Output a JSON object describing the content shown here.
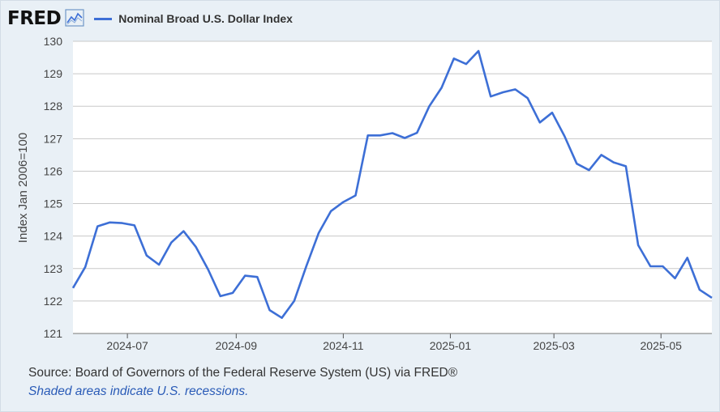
{
  "header": {
    "logo": "FRED",
    "legend_label": "Nominal Broad U.S. Dollar Index",
    "icon": "chart-line-icon"
  },
  "footer": {
    "source": "Source: Board of Governors of the Federal Reserve System (US) via FRED®",
    "note": "Shaded areas indicate U.S. recessions."
  },
  "colors": {
    "line": "#3d6fd6",
    "plot_bg": "#ffffff",
    "grid": "#c8c8c8",
    "page_bg": "#e9f0f6",
    "note_text": "#2a5bb7"
  },
  "chart_data": {
    "type": "line",
    "title": "",
    "xlabel": "",
    "ylabel": "Index Jan 2006=100",
    "ylim": [
      121,
      130
    ],
    "yticks": [
      121,
      122,
      123,
      124,
      125,
      126,
      127,
      128,
      129,
      130
    ],
    "xlim": [
      "2024-05-31",
      "2025-05-30"
    ],
    "xticks": [
      "2024-07",
      "2024-09",
      "2024-11",
      "2025-01",
      "2025-03",
      "2025-05"
    ],
    "grid": true,
    "legend": "top-left",
    "series": [
      {
        "name": "Nominal Broad U.S. Dollar Index",
        "x": [
          "2024-05-31",
          "2024-06-07",
          "2024-06-14",
          "2024-06-21",
          "2024-06-28",
          "2024-07-05",
          "2024-07-12",
          "2024-07-19",
          "2024-07-26",
          "2024-08-02",
          "2024-08-09",
          "2024-08-16",
          "2024-08-23",
          "2024-08-30",
          "2024-09-06",
          "2024-09-13",
          "2024-09-20",
          "2024-09-27",
          "2024-10-04",
          "2024-10-11",
          "2024-10-18",
          "2024-10-25",
          "2024-11-01",
          "2024-11-08",
          "2024-11-15",
          "2024-11-22",
          "2024-11-29",
          "2024-12-06",
          "2024-12-13",
          "2024-12-20",
          "2024-12-27",
          "2025-01-03",
          "2025-01-10",
          "2025-01-17",
          "2025-01-24",
          "2025-01-31",
          "2025-02-07",
          "2025-02-14",
          "2025-02-21",
          "2025-02-28",
          "2025-03-07",
          "2025-03-14",
          "2025-03-21",
          "2025-03-28",
          "2025-04-04",
          "2025-04-11",
          "2025-04-18",
          "2025-04-25",
          "2025-05-02",
          "2025-05-09",
          "2025-05-16",
          "2025-05-23",
          "2025-05-30"
        ],
        "y": [
          122.4,
          123.05,
          124.3,
          124.42,
          124.4,
          124.33,
          123.4,
          123.12,
          123.8,
          124.15,
          123.67,
          122.97,
          122.15,
          122.25,
          122.78,
          122.74,
          121.72,
          121.48,
          122.0,
          123.08,
          124.1,
          124.77,
          125.05,
          125.25,
          127.1,
          127.1,
          127.17,
          127.02,
          127.18,
          128.0,
          128.57,
          129.47,
          129.3,
          129.7,
          128.3,
          128.43,
          128.52,
          128.25,
          127.5,
          127.8,
          127.08,
          126.23,
          126.03,
          126.5,
          126.27,
          126.15,
          123.72,
          123.07,
          123.07,
          122.7,
          123.33,
          122.35,
          122.1
        ]
      }
    ]
  }
}
